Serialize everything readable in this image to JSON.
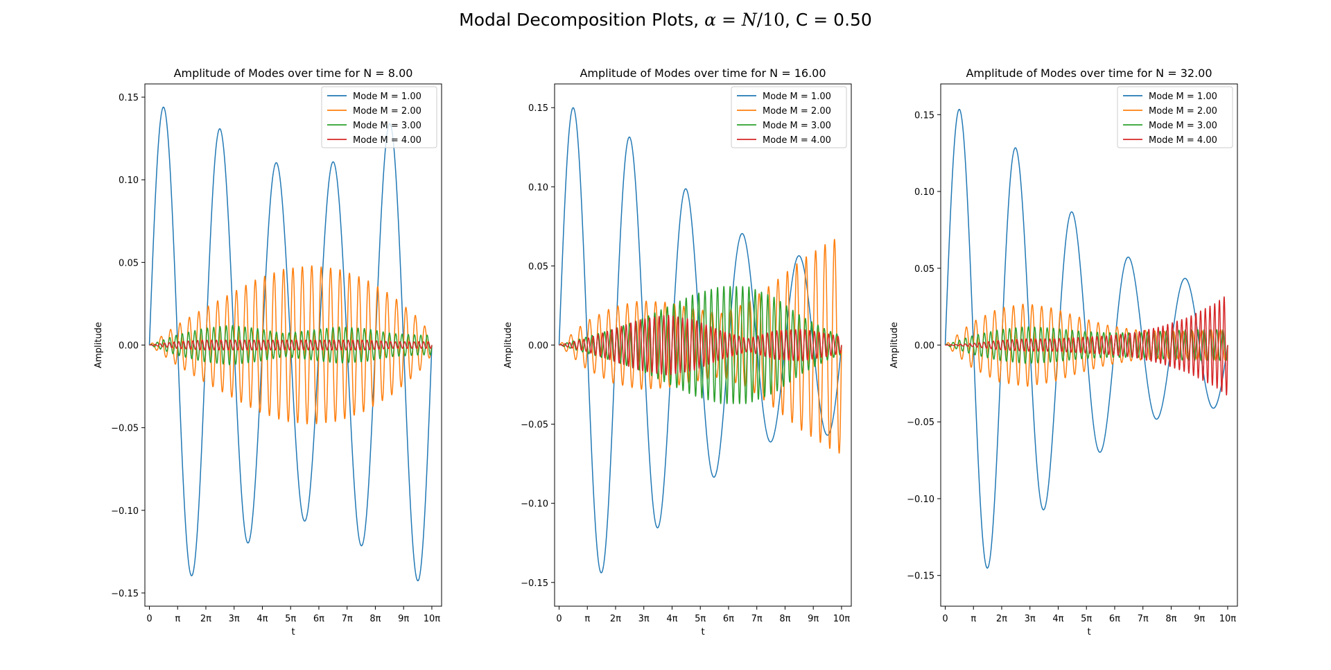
{
  "figure": {
    "title_prefix": "Modal Decomposition Plots,  ",
    "title_alpha": "α",
    "title_eq": " = ",
    "title_n": "N",
    "title_ratio": "/10",
    "title_suffix": ",  C = 0.50"
  },
  "chart_data": [
    {
      "type": "line",
      "title": "Amplitude of Modes over time for N = 8.00",
      "xlabel": "t",
      "ylabel": "Amplitude",
      "xlim": [
        -0.5,
        32.5
      ],
      "ylim": [
        -0.158,
        0.158
      ],
      "xticks": [
        0,
        3.14159,
        6.28319,
        9.42478,
        12.56637,
        15.70796,
        18.84956,
        21.99115,
        25.13274,
        28.27433,
        31.41593
      ],
      "xtick_labels": [
        "0",
        "π",
        "2π",
        "3π",
        "4π",
        "5π",
        "6π",
        "7π",
        "8π",
        "9π",
        "10π"
      ],
      "yticks": [
        -0.15,
        -0.1,
        -0.05,
        0.0,
        0.05,
        0.1,
        0.15
      ],
      "ytick_labels": [
        "−0.15",
        "−0.10",
        "−0.05",
        "0.00",
        "0.05",
        "0.10",
        "0.15"
      ],
      "legend_position": "top-right",
      "grid": false,
      "series": [
        {
          "name": "Mode M = 1.00",
          "color": "#1f77b4",
          "frequency": 1.0,
          "envelope_t": [
            0,
            3,
            6,
            9,
            12,
            15,
            18,
            21,
            24,
            27,
            30,
            31.4
          ],
          "envelope_amp": [
            0.145,
            0.143,
            0.137,
            0.127,
            0.116,
            0.108,
            0.106,
            0.112,
            0.123,
            0.135,
            0.143,
            0.145
          ]
        },
        {
          "name": "Mode M = 2.00",
          "color": "#ff7f0e",
          "frequency": 6.0,
          "envelope_t": [
            0,
            3,
            6,
            9,
            12,
            15,
            18,
            21,
            24,
            27,
            30,
            31.4
          ],
          "envelope_amp": [
            0.0,
            0.012,
            0.022,
            0.031,
            0.04,
            0.046,
            0.048,
            0.046,
            0.04,
            0.03,
            0.016,
            0.006
          ]
        },
        {
          "name": "Mode M = 3.00",
          "color": "#2ca02c",
          "frequency": 9.0,
          "envelope_t": [
            0,
            3,
            6,
            9,
            12,
            15,
            18,
            21,
            24,
            27,
            30,
            31.4
          ],
          "envelope_amp": [
            0.0,
            0.006,
            0.01,
            0.012,
            0.01,
            0.007,
            0.009,
            0.011,
            0.01,
            0.007,
            0.006,
            0.006
          ]
        },
        {
          "name": "Mode M = 4.00",
          "color": "#d62728",
          "frequency": 12.0,
          "envelope_t": [
            0,
            3,
            6,
            9,
            12,
            15,
            18,
            21,
            24,
            27,
            30,
            31.4
          ],
          "envelope_amp": [
            0.0,
            0.002,
            0.003,
            0.003,
            0.003,
            0.003,
            0.003,
            0.003,
            0.003,
            0.002,
            0.002,
            0.002
          ]
        }
      ]
    },
    {
      "type": "line",
      "title": "Amplitude of Modes over time for N = 16.00",
      "xlabel": "t",
      "ylabel": "Amplitude",
      "xlim": [
        -0.5,
        32.5
      ],
      "ylim": [
        -0.165,
        0.165
      ],
      "xticks": [
        0,
        3.14159,
        6.28319,
        9.42478,
        12.56637,
        15.70796,
        18.84956,
        21.99115,
        25.13274,
        28.27433,
        31.41593
      ],
      "xtick_labels": [
        "0",
        "π",
        "2π",
        "3π",
        "4π",
        "5π",
        "6π",
        "7π",
        "8π",
        "9π",
        "10π"
      ],
      "yticks": [
        -0.15,
        -0.1,
        -0.05,
        0.0,
        0.05,
        0.1,
        0.15
      ],
      "ytick_labels": [
        "−0.15",
        "−0.10",
        "−0.05",
        "0.00",
        "0.05",
        "0.10",
        "0.15"
      ],
      "legend_position": "top-right",
      "grid": false,
      "series": [
        {
          "name": "Mode M = 1.00",
          "color": "#1f77b4",
          "frequency": 1.0,
          "envelope_t": [
            0,
            3,
            6,
            9,
            12,
            15,
            18,
            21,
            24,
            27,
            30,
            31.4
          ],
          "envelope_amp": [
            0.151,
            0.149,
            0.14,
            0.126,
            0.11,
            0.094,
            0.08,
            0.068,
            0.06,
            0.056,
            0.057,
            0.058
          ]
        },
        {
          "name": "Mode M = 2.00",
          "color": "#ff7f0e",
          "frequency": 6.0,
          "envelope_t": [
            0,
            3,
            6,
            9,
            12,
            15,
            18,
            21,
            24,
            27,
            30,
            31.4
          ],
          "envelope_amp": [
            0.0,
            0.015,
            0.024,
            0.028,
            0.027,
            0.023,
            0.02,
            0.027,
            0.04,
            0.054,
            0.065,
            0.069
          ]
        },
        {
          "name": "Mode M = 3.00",
          "color": "#2ca02c",
          "frequency": 9.0,
          "envelope_t": [
            0,
            3,
            6,
            9,
            12,
            15,
            18,
            21,
            24,
            27,
            30,
            31.4
          ],
          "envelope_amp": [
            0.0,
            0.005,
            0.01,
            0.016,
            0.024,
            0.032,
            0.037,
            0.037,
            0.03,
            0.018,
            0.009,
            0.006
          ]
        },
        {
          "name": "Mode M = 4.00",
          "color": "#d62728",
          "frequency": 12.0,
          "envelope_t": [
            0,
            3,
            6,
            9,
            12,
            15,
            18,
            21,
            24,
            27,
            30,
            31.4
          ],
          "envelope_amp": [
            0.0,
            0.004,
            0.01,
            0.016,
            0.019,
            0.016,
            0.009,
            0.004,
            0.009,
            0.01,
            0.007,
            0.005
          ]
        }
      ]
    },
    {
      "type": "line",
      "title": "Amplitude of Modes over time for N = 32.00",
      "xlabel": "t",
      "ylabel": "Amplitude",
      "xlim": [
        -0.5,
        32.5
      ],
      "ylim": [
        -0.17,
        0.17
      ],
      "xticks": [
        0,
        3.14159,
        6.28319,
        9.42478,
        12.56637,
        15.70796,
        18.84956,
        21.99115,
        25.13274,
        28.27433,
        31.41593
      ],
      "xtick_labels": [
        "0",
        "π",
        "2π",
        "3π",
        "4π",
        "5π",
        "6π",
        "7π",
        "8π",
        "9π",
        "10π"
      ],
      "yticks": [
        -0.15,
        -0.1,
        -0.05,
        0.0,
        0.05,
        0.1,
        0.15
      ],
      "ytick_labels": [
        "−0.15",
        "−0.10",
        "−0.05",
        "0.00",
        "0.05",
        "0.10",
        "0.15"
      ],
      "legend_position": "top-right",
      "grid": false,
      "series": [
        {
          "name": "Mode M = 1.00",
          "color": "#1f77b4",
          "frequency": 1.0,
          "envelope_t": [
            0,
            3,
            6,
            9,
            12,
            15,
            18,
            21,
            24,
            27,
            30,
            31.4
          ],
          "envelope_amp": [
            0.155,
            0.152,
            0.14,
            0.121,
            0.1,
            0.081,
            0.066,
            0.055,
            0.047,
            0.043,
            0.041,
            0.04
          ]
        },
        {
          "name": "Mode M = 2.00",
          "color": "#ff7f0e",
          "frequency": 6.0,
          "envelope_t": [
            0,
            3,
            6,
            9,
            12,
            15,
            18,
            21,
            24,
            27,
            30,
            31.4
          ],
          "envelope_amp": [
            0.0,
            0.015,
            0.024,
            0.027,
            0.024,
            0.018,
            0.013,
            0.01,
            0.009,
            0.009,
            0.01,
            0.01
          ]
        },
        {
          "name": "Mode M = 3.00",
          "color": "#2ca02c",
          "frequency": 9.0,
          "envelope_t": [
            0,
            3,
            6,
            9,
            12,
            15,
            18,
            21,
            24,
            27,
            30,
            31.4
          ],
          "envelope_amp": [
            0.0,
            0.006,
            0.01,
            0.012,
            0.011,
            0.009,
            0.008,
            0.008,
            0.009,
            0.01,
            0.01,
            0.01
          ]
        },
        {
          "name": "Mode M = 4.00",
          "color": "#d62728",
          "frequency": 12.0,
          "envelope_t": [
            0,
            3,
            6,
            9,
            12,
            15,
            18,
            21,
            24,
            27,
            30,
            31.4
          ],
          "envelope_amp": [
            0.0,
            0.001,
            0.003,
            0.004,
            0.004,
            0.005,
            0.006,
            0.008,
            0.012,
            0.018,
            0.027,
            0.033
          ]
        }
      ]
    }
  ]
}
